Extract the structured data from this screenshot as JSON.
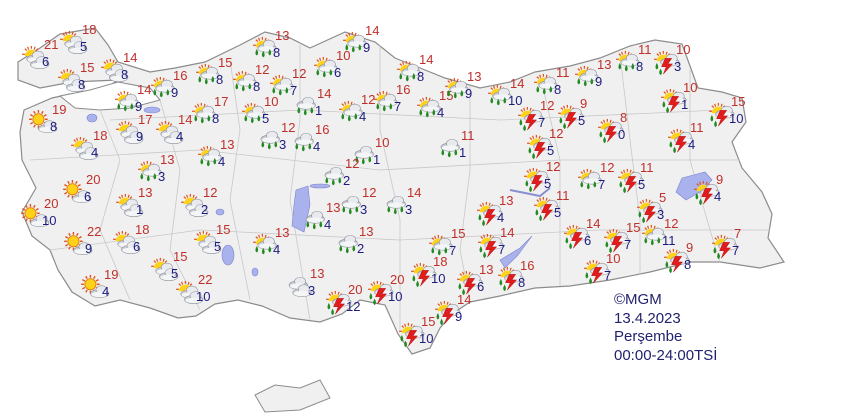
{
  "colors": {
    "max_temp": "#c0302a",
    "min_temp": "#1c1c80",
    "land": "#f0f0f0",
    "border": "#9a9a9a",
    "lake": "#aab2ee"
  },
  "stations": [
    {
      "max": "18",
      "min": "5",
      "cond": "partly-cloudy"
    },
    {
      "max": "21",
      "min": "6",
      "cond": "partly-cloudy"
    },
    {
      "max": "15",
      "min": "8",
      "cond": "partly-cloudy"
    },
    {
      "max": "14",
      "min": "8",
      "cond": "partly-cloudy"
    },
    {
      "max": "16",
      "min": "9",
      "cond": "partly-cloudy-rain"
    },
    {
      "max": "14",
      "min": "9",
      "cond": "partly-cloudy-rain"
    },
    {
      "max": "19",
      "min": "8",
      "cond": "mostly-sunny"
    },
    {
      "max": "18",
      "min": "4",
      "cond": "partly-cloudy"
    },
    {
      "max": "17",
      "min": "9",
      "cond": "partly-cloudy"
    },
    {
      "max": "14",
      "min": "4",
      "cond": "partly-cloudy"
    },
    {
      "max": "13",
      "min": "3",
      "cond": "partly-cloudy-rain"
    },
    {
      "max": "13",
      "min": "4",
      "cond": "partly-cloudy-rain"
    },
    {
      "max": "20",
      "min": "6",
      "cond": "mostly-sunny"
    },
    {
      "max": "13",
      "min": "1",
      "cond": "partly-cloudy"
    },
    {
      "max": "12",
      "min": "2",
      "cond": "partly-cloudy"
    },
    {
      "max": "20",
      "min": "10",
      "cond": "mostly-sunny"
    },
    {
      "max": "22",
      "min": "9",
      "cond": "mostly-sunny"
    },
    {
      "max": "18",
      "min": "6",
      "cond": "partly-cloudy"
    },
    {
      "max": "15",
      "min": "5",
      "cond": "partly-cloudy"
    },
    {
      "max": "15",
      "min": "5",
      "cond": "partly-cloudy"
    },
    {
      "max": "19",
      "min": "4",
      "cond": "mostly-sunny"
    },
    {
      "max": "22",
      "min": "10",
      "cond": "partly-cloudy"
    },
    {
      "max": "13",
      "min": "4",
      "cond": "partly-cloudy-rain"
    },
    {
      "max": "13",
      "min": "3",
      "cond": "cloudy"
    },
    {
      "max": "15",
      "min": "8",
      "cond": "partly-cloudy-rain"
    },
    {
      "max": "12",
      "min": "8",
      "cond": "partly-cloudy-rain"
    },
    {
      "max": "12",
      "min": "7",
      "cond": "partly-cloudy-rain"
    },
    {
      "max": "17",
      "min": "8",
      "cond": "partly-cloudy-rain"
    },
    {
      "max": "10",
      "min": "5",
      "cond": "partly-cloudy-rain"
    },
    {
      "max": "13",
      "min": "8",
      "cond": "partly-cloudy-rain"
    },
    {
      "max": "14",
      "min": "9",
      "cond": "partly-cloudy-rain"
    },
    {
      "max": "10",
      "min": "6",
      "cond": "partly-cloudy-rain"
    },
    {
      "max": "14",
      "min": "1",
      "cond": "rain"
    },
    {
      "max": "12",
      "min": "4",
      "cond": "partly-cloudy-rain"
    },
    {
      "max": "12",
      "min": "3",
      "cond": "rain"
    },
    {
      "max": "16",
      "min": "4",
      "cond": "rain"
    },
    {
      "max": "10",
      "min": "1",
      "cond": "rain"
    },
    {
      "max": "12",
      "min": "2",
      "cond": "rain"
    },
    {
      "max": "12",
      "min": "3",
      "cond": "rain"
    },
    {
      "max": "14",
      "min": "3",
      "cond": "rain"
    },
    {
      "max": "13",
      "min": "4",
      "cond": "rain"
    },
    {
      "max": "13",
      "min": "2",
      "cond": "rain"
    },
    {
      "max": "14",
      "min": "8",
      "cond": "partly-cloudy-rain"
    },
    {
      "max": "16",
      "min": "7",
      "cond": "partly-cloudy-rain"
    },
    {
      "max": "15",
      "min": "4",
      "cond": "partly-cloudy-rain"
    },
    {
      "max": "13",
      "min": "9",
      "cond": "partly-cloudy-rain"
    },
    {
      "max": "11",
      "min": "1",
      "cond": "rain"
    },
    {
      "max": "14",
      "min": "10",
      "cond": "partly-cloudy-rain"
    },
    {
      "max": "11",
      "min": "8",
      "cond": "partly-cloudy-rain"
    },
    {
      "max": "12",
      "min": "7",
      "cond": "thunderstorm"
    },
    {
      "max": "9",
      "min": "5",
      "cond": "thunderstorm"
    },
    {
      "max": "12",
      "min": "5",
      "cond": "thunderstorm"
    },
    {
      "max": "12",
      "min": "5",
      "cond": "thunderstorm"
    },
    {
      "max": "11",
      "min": "5",
      "cond": "thunderstorm"
    },
    {
      "max": "13",
      "min": "4",
      "cond": "thunderstorm"
    },
    {
      "max": "14",
      "min": "7",
      "cond": "thunderstorm"
    },
    {
      "max": "15",
      "min": "7",
      "cond": "partly-cloudy-rain"
    },
    {
      "max": "16",
      "min": "8",
      "cond": "thunderstorm"
    },
    {
      "max": "13",
      "min": "6",
      "cond": "thunderstorm"
    },
    {
      "max": "18",
      "min": "10",
      "cond": "thunderstorm"
    },
    {
      "max": "20",
      "min": "10",
      "cond": "thunderstorm"
    },
    {
      "max": "20",
      "min": "12",
      "cond": "thunderstorm"
    },
    {
      "max": "14",
      "min": "9",
      "cond": "thunderstorm"
    },
    {
      "max": "15",
      "min": "10",
      "cond": "thunderstorm"
    },
    {
      "max": "13",
      "min": "9",
      "cond": "partly-cloudy-rain"
    },
    {
      "max": "11",
      "min": "8",
      "cond": "partly-cloudy-rain"
    },
    {
      "max": "10",
      "min": "3",
      "cond": "thunderstorm"
    },
    {
      "max": "10",
      "min": "1",
      "cond": "thunderstorm"
    },
    {
      "max": "15",
      "min": "10",
      "cond": "thunderstorm"
    },
    {
      "max": "8",
      "min": "0",
      "cond": "thunderstorm"
    },
    {
      "max": "11",
      "min": "4",
      "cond": "thunderstorm"
    },
    {
      "max": "12",
      "min": "7",
      "cond": "partly-cloudy-rain"
    },
    {
      "max": "11",
      "min": "5",
      "cond": "thunderstorm"
    },
    {
      "max": "5",
      "min": "3",
      "cond": "thunderstorm"
    },
    {
      "max": "9",
      "min": "4",
      "cond": "thunderstorm"
    },
    {
      "max": "14",
      "min": "6",
      "cond": "thunderstorm"
    },
    {
      "max": "15",
      "min": "7",
      "cond": "thunderstorm"
    },
    {
      "max": "12",
      "min": "11",
      "cond": "partly-cloudy-rain"
    },
    {
      "max": "10",
      "min": "7",
      "cond": "thunderstorm"
    },
    {
      "max": "9",
      "min": "8",
      "cond": "thunderstorm"
    },
    {
      "max": "7",
      "min": "7",
      "cond": "thunderstorm"
    }
  ],
  "info": {
    "copyright": "©MGM",
    "date": "13.4.2023",
    "day": "Perşembe",
    "period": "00:00-24:00TSİ"
  }
}
